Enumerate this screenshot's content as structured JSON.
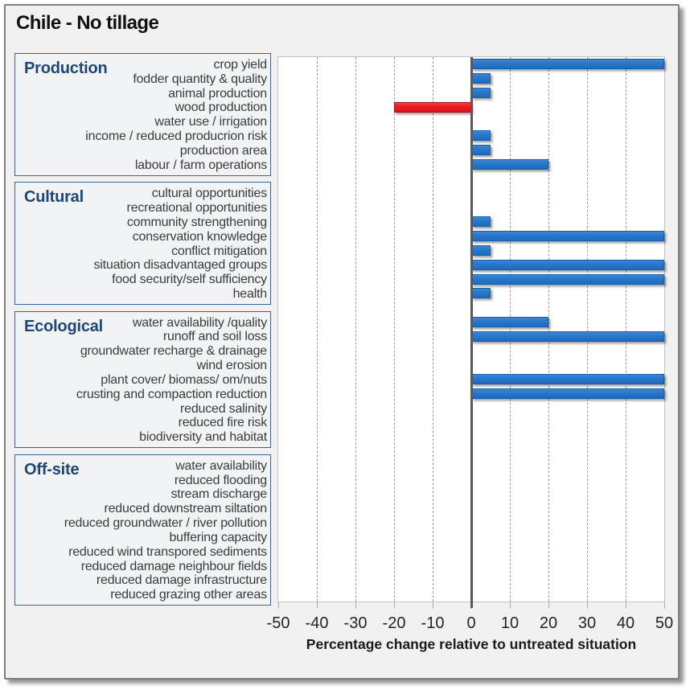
{
  "title": "Chile - No tillage",
  "colors": {
    "bar_positive": "#2a78cb",
    "bar_negative": "#ec1c24",
    "group_title": "#1d4876",
    "background": "#f1f1f1",
    "plot_background": "#ffffff",
    "zero_line": "#595959"
  },
  "chart_data": {
    "type": "bar",
    "orientation": "horizontal",
    "title": "Chile - No tillage",
    "xlabel": "Percentage change relative to untreated situation",
    "xlim": [
      -50,
      50
    ],
    "xticks": [
      -50,
      -40,
      -30,
      -20,
      -10,
      0,
      10,
      20,
      30,
      40,
      50
    ],
    "grid": "vertical-dashed",
    "groups": [
      {
        "name": "Production",
        "items": [
          {
            "label": "crop yield",
            "value": 50
          },
          {
            "label": "fodder quantity & quality",
            "value": 5
          },
          {
            "label": "animal production",
            "value": 5
          },
          {
            "label": "wood production",
            "value": -20
          },
          {
            "label": "water use / irrigation",
            "value": 0
          },
          {
            "label": "income / reduced producrion risk",
            "value": 5
          },
          {
            "label": "production area",
            "value": 5
          },
          {
            "label": "labour / farm operations",
            "value": 20
          }
        ]
      },
      {
        "name": "Cultural",
        "items": [
          {
            "label": "cultural opportunities",
            "value": 0
          },
          {
            "label": "recreational opportunities",
            "value": 0
          },
          {
            "label": "community strengthening",
            "value": 5
          },
          {
            "label": "conservation knowledge",
            "value": 50
          },
          {
            "label": "conflict mitigation",
            "value": 5
          },
          {
            "label": "situation disadvantaged groups",
            "value": 50
          },
          {
            "label": "food security/self sufficiency",
            "value": 50
          },
          {
            "label": "health",
            "value": 5
          }
        ]
      },
      {
        "name": "Ecological",
        "items": [
          {
            "label": "water availability /quality",
            "value": 20
          },
          {
            "label": "runoff and soil loss",
            "value": 50
          },
          {
            "label": "groundwater recharge & drainage",
            "value": 0
          },
          {
            "label": "wind erosion",
            "value": 0
          },
          {
            "label": "plant cover/ biomass/ om/nuts",
            "value": 50
          },
          {
            "label": "crusting and compaction reduction",
            "value": 50
          },
          {
            "label": "reduced salinity",
            "value": 0
          },
          {
            "label": "reduced fire risk",
            "value": 0
          },
          {
            "label": "biodiversity and habitat",
            "value": 0
          }
        ]
      },
      {
        "name": "Off-site",
        "items": [
          {
            "label": "water availability",
            "value": 0
          },
          {
            "label": "reduced flooding",
            "value": 0
          },
          {
            "label": "stream discharge",
            "value": 0
          },
          {
            "label": "reduced downstream siltation",
            "value": 0
          },
          {
            "label": "reduced groundwater / river pollution",
            "value": 0
          },
          {
            "label": "buffering capacity",
            "value": 0
          },
          {
            "label": "reduced wind transpored sediments",
            "value": 0
          },
          {
            "label": "reduced damage neighbour fields",
            "value": 0
          },
          {
            "label": "reduced damage infrastructure",
            "value": 0
          },
          {
            "label": "reduced grazing other areas",
            "value": 0
          }
        ]
      }
    ]
  }
}
